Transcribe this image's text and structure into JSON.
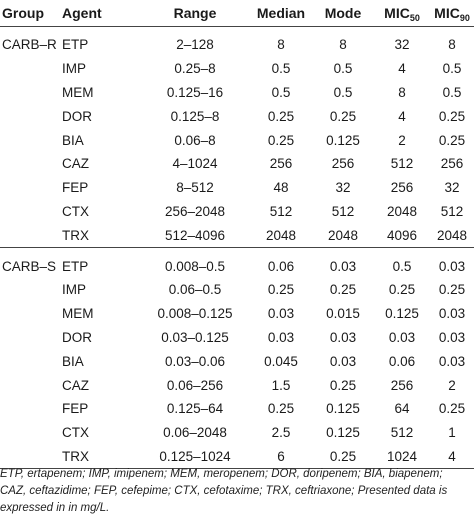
{
  "table": {
    "headers": {
      "group": "Group",
      "agent": "Agent",
      "range": "Range",
      "median": "Median",
      "mode": "Mode",
      "mic50_main": "MIC",
      "mic50_sub": "50",
      "mic90_main": "MIC",
      "mic90_sub": "90"
    },
    "groups": [
      {
        "label": "CARB–R",
        "rows": [
          {
            "agent": "ETP",
            "range": "2–128",
            "median": "8",
            "mode": "8",
            "mic50": "32",
            "mic90": "8"
          },
          {
            "agent": "IMP",
            "range": "0.25–8",
            "median": "0.5",
            "mode": "0.5",
            "mic50": "4",
            "mic90": "0.5"
          },
          {
            "agent": "MEM",
            "range": "0.125–16",
            "median": "0.5",
            "mode": "0.5",
            "mic50": "8",
            "mic90": "0.5"
          },
          {
            "agent": "DOR",
            "range": "0.125–8",
            "median": "0.25",
            "mode": "0.25",
            "mic50": "4",
            "mic90": "0.25"
          },
          {
            "agent": "BIA",
            "range": "0.06–8",
            "median": "0.25",
            "mode": "0.125",
            "mic50": "2",
            "mic90": "0.25"
          },
          {
            "agent": "CAZ",
            "range": "4–1024",
            "median": "256",
            "mode": "256",
            "mic50": "512",
            "mic90": "256"
          },
          {
            "agent": "FEP",
            "range": "8–512",
            "median": "48",
            "mode": "32",
            "mic50": "256",
            "mic90": "32"
          },
          {
            "agent": "CTX",
            "range": "256–2048",
            "median": "512",
            "mode": "512",
            "mic50": "2048",
            "mic90": "512"
          },
          {
            "agent": "TRX",
            "range": "512–4096",
            "median": "2048",
            "mode": "2048",
            "mic50": "4096",
            "mic90": "2048"
          }
        ]
      },
      {
        "label": "CARB–S",
        "rows": [
          {
            "agent": "ETP",
            "range": "0.008–0.5",
            "median": "0.06",
            "mode": "0.03",
            "mic50": "0.5",
            "mic90": "0.03"
          },
          {
            "agent": "IMP",
            "range": "0.06–0.5",
            "median": "0.25",
            "mode": "0.25",
            "mic50": "0.25",
            "mic90": "0.25"
          },
          {
            "agent": "MEM",
            "range": "0.008–0.125",
            "median": "0.03",
            "mode": "0.015",
            "mic50": "0.125",
            "mic90": "0.03"
          },
          {
            "agent": "DOR",
            "range": "0.03–0.125",
            "median": "0.03",
            "mode": "0.03",
            "mic50": "0.03",
            "mic90": "0.03"
          },
          {
            "agent": "BIA",
            "range": "0.03–0.06",
            "median": "0.045",
            "mode": "0.03",
            "mic50": "0.06",
            "mic90": "0.03"
          },
          {
            "agent": "CAZ",
            "range": "0.06–256",
            "median": "1.5",
            "mode": "0.25",
            "mic50": "256",
            "mic90": "2"
          },
          {
            "agent": "FEP",
            "range": "0.125–64",
            "median": "0.25",
            "mode": "0.125",
            "mic50": "64",
            "mic90": "0.25"
          },
          {
            "agent": "CTX",
            "range": "0.06–2048",
            "median": "2.5",
            "mode": "0.125",
            "mic50": "512",
            "mic90": "1"
          },
          {
            "agent": "TRX",
            "range": "0.125–1024",
            "median": "6",
            "mode": "0.25",
            "mic50": "1024",
            "mic90": "4"
          }
        ]
      }
    ]
  },
  "footnote": {
    "line1": "ETP, ertapenem; IMP, imipenem; MEM, meropenem; DOR, doripenem; BIA, biapenem;",
    "line2": "CAZ, ceftazidime; FEP, cefepime; CTX, cefotaxime; TRX, ceftriaxone; Presented data is",
    "line3": "expressed in in mg/L."
  }
}
